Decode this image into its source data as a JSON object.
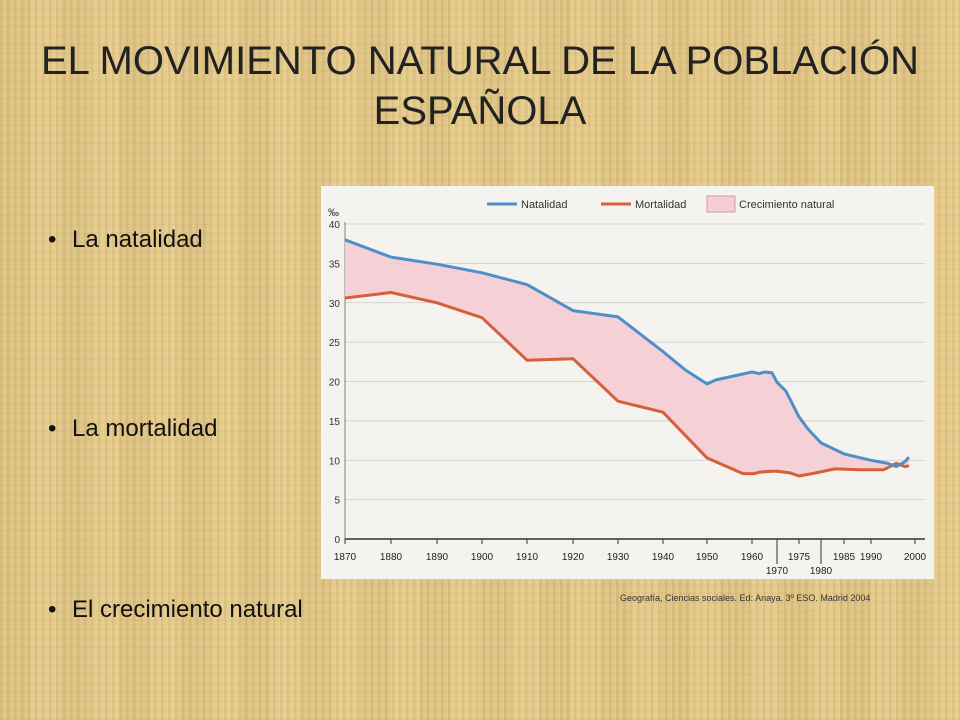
{
  "slide": {
    "title": "EL MOVIMIENTO NATURAL DE LA POBLACIÓN ESPAÑOLA",
    "bullets": [
      "La natalidad",
      "La mortalidad",
      "El crecimiento natural"
    ],
    "source": "Geografía, Ciencias sociales. Ed: Anaya. 3º ESO. Madrid 2004"
  },
  "chart_data": {
    "type": "area",
    "ylabel": "‰",
    "ylim": [
      0,
      40
    ],
    "yticks": [
      0,
      5,
      10,
      15,
      20,
      25,
      30,
      35,
      40
    ],
    "xticks": [
      "1870",
      "1880",
      "1890",
      "1900",
      "1910",
      "1920",
      "1930",
      "1940",
      "1950",
      "1960",
      "1970",
      "1975",
      "1980",
      "1985",
      "1990",
      "2000"
    ],
    "grid": true,
    "legend_position": "top",
    "colors": {
      "natalidad": "#4f8fc8",
      "mortalidad": "#d6603a",
      "crecimiento": "#f5cdd4"
    },
    "series": [
      {
        "name": "Natalidad",
        "points": [
          [
            1870,
            38
          ],
          [
            1880,
            35.8
          ],
          [
            1890,
            34.9
          ],
          [
            1900,
            33.8
          ],
          [
            1910,
            32.3
          ],
          [
            1920,
            29
          ],
          [
            1930,
            28.2
          ],
          [
            1940,
            23.8
          ],
          [
            1945,
            21.5
          ],
          [
            1950,
            19.7
          ],
          [
            1952,
            20.2
          ],
          [
            1960,
            21.2
          ],
          [
            1963,
            21
          ],
          [
            1965,
            21.2
          ],
          [
            1968,
            21.1
          ],
          [
            1970,
            19.9
          ],
          [
            1972,
            18.8
          ],
          [
            1975,
            15.5
          ],
          [
            1977,
            14
          ],
          [
            1980,
            12.2
          ],
          [
            1985,
            10.8
          ],
          [
            1990,
            10
          ],
          [
            1994,
            9.6
          ],
          [
            1996,
            9.2
          ],
          [
            1998,
            9.8
          ],
          [
            1999,
            10.4
          ]
        ]
      },
      {
        "name": "Mortalidad",
        "points": [
          [
            1870,
            30.6
          ],
          [
            1880,
            31.3
          ],
          [
            1890,
            30
          ],
          [
            1900,
            28.1
          ],
          [
            1910,
            22.7
          ],
          [
            1920,
            22.9
          ],
          [
            1930,
            17.5
          ],
          [
            1940,
            16.1
          ],
          [
            1950,
            10.3
          ],
          [
            1958,
            8.3
          ],
          [
            1961,
            8.3
          ],
          [
            1963,
            8.5
          ],
          [
            1968,
            8.6
          ],
          [
            1970,
            8.6
          ],
          [
            1973,
            8.4
          ],
          [
            1975,
            8
          ],
          [
            1978,
            8.3
          ],
          [
            1983,
            8.9
          ],
          [
            1988,
            8.8
          ],
          [
            1993,
            8.8
          ],
          [
            1996,
            9.6
          ],
          [
            1998,
            9.2
          ],
          [
            1999,
            9.3
          ]
        ]
      }
    ],
    "fill_between": {
      "name": "Crecimiento natural",
      "upper": "Natalidad",
      "lower": "Mortalidad"
    }
  }
}
